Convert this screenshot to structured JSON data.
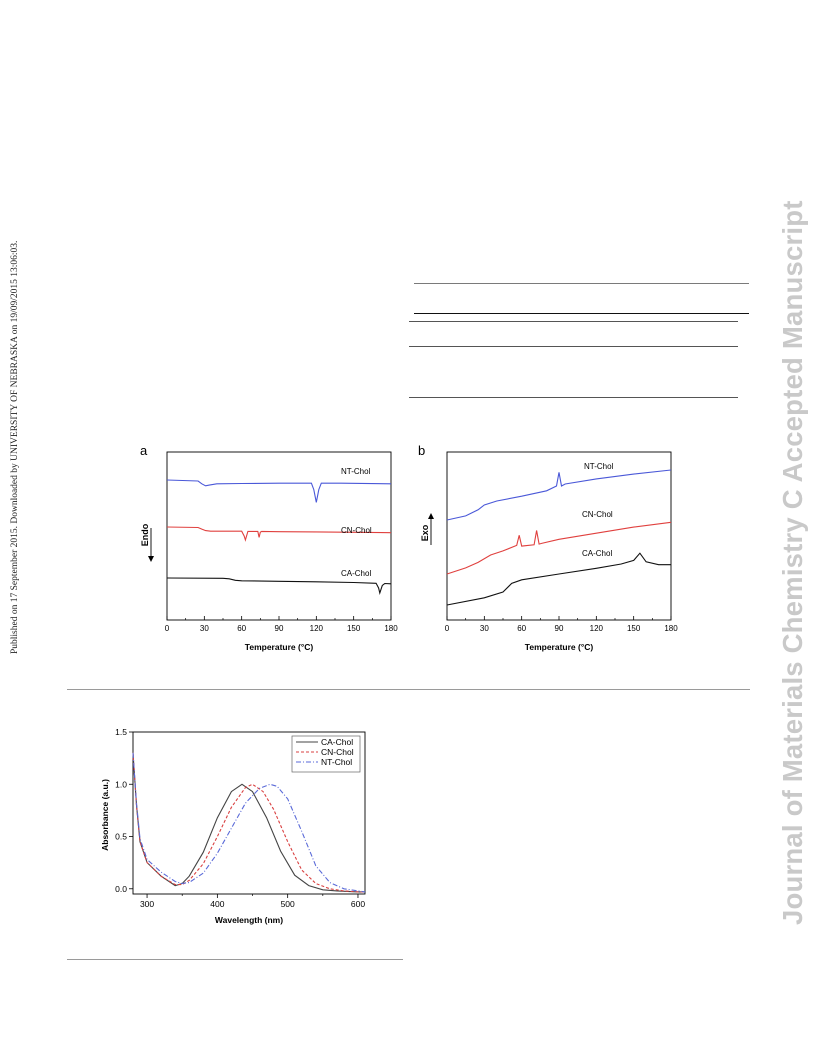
{
  "side_left_text": "Published on 17 September 2015. Downloaded by UNIVERSITY OF NEBRASKA on 19/09/2015 13:06:03.",
  "side_right_text": "Journal of Materials Chemistry C Accepted Manuscript",
  "chart_data": [
    {
      "type": "line",
      "panel_label": "a",
      "xlabel": "Temperature (°C)",
      "ylabel": "Endo",
      "xlim": [
        0,
        180
      ],
      "xticks": [
        "0",
        "30",
        "60",
        "90",
        "120",
        "150",
        "180"
      ],
      "series": [
        {
          "name": "NT-Chol",
          "color": "#4a58d8",
          "x": [
            0,
            25,
            28,
            31,
            34,
            40,
            60,
            90,
            116,
            118,
            120,
            122,
            124,
            140,
            180
          ],
          "y": [
            0,
            -0.3,
            -1.2,
            -1.8,
            -1.6,
            -1.2,
            -1.1,
            -1.0,
            -1.0,
            -3,
            -7,
            -3,
            -1.0,
            -1.0,
            -1.2
          ]
        },
        {
          "name": "CN-Chol",
          "color": "#e0403e",
          "x": [
            0,
            25,
            28,
            31,
            35,
            60,
            62,
            63,
            65,
            73,
            74,
            75,
            76,
            90,
            120,
            180
          ],
          "y": [
            0,
            -0.2,
            -0.8,
            -1.4,
            -1.6,
            -1.6,
            -3.5,
            -5,
            -1.7,
            -1.7,
            -4,
            -2,
            -1.7,
            -1.8,
            -1.9,
            -2.2
          ]
        },
        {
          "name": "CA-Chol",
          "color": "#111111",
          "x": [
            0,
            45,
            50,
            55,
            60,
            90,
            120,
            150,
            168,
            170,
            171,
            173,
            175,
            180
          ],
          "y": [
            0,
            -0.1,
            -0.3,
            -0.9,
            -1.1,
            -1.3,
            -1.5,
            -1.8,
            -2.1,
            -4,
            -6,
            -3,
            -2.2,
            -2.3
          ]
        }
      ]
    },
    {
      "type": "line",
      "panel_label": "b",
      "xlabel": "Temperature (°C)",
      "ylabel": "Exo",
      "xlim": [
        0,
        180
      ],
      "xticks": [
        "0",
        "30",
        "60",
        "90",
        "120",
        "150",
        "180"
      ],
      "series": [
        {
          "name": "NT-Chol",
          "color": "#4a58d8",
          "x": [
            0,
            15,
            25,
            30,
            40,
            60,
            80,
            88,
            90,
            92,
            95,
            120,
            150,
            180
          ],
          "y": [
            0,
            1.2,
            3.0,
            4.4,
            5.6,
            7.0,
            8.6,
            10,
            14,
            10,
            10.6,
            12.1,
            13.5,
            14.7
          ]
        },
        {
          "name": "CN-Chol",
          "color": "#e0403e",
          "x": [
            0,
            15,
            25,
            35,
            45,
            56,
            58,
            60,
            70,
            72,
            74,
            76,
            90,
            120,
            150,
            180
          ],
          "y": [
            0,
            1.8,
            3.4,
            5.6,
            6.8,
            8.4,
            11.4,
            8.2,
            8.6,
            12.8,
            8.8,
            9.0,
            10.2,
            12.0,
            13.8,
            15.2
          ]
        },
        {
          "name": "CA-Chol",
          "color": "#111111",
          "x": [
            0,
            30,
            45,
            52,
            60,
            90,
            120,
            140,
            150,
            155,
            160,
            170,
            180
          ],
          "y": [
            0,
            2.0,
            3.6,
            6.0,
            7.0,
            8.6,
            10.2,
            11.4,
            12.4,
            14.4,
            12.0,
            11.2,
            11.2
          ]
        }
      ]
    },
    {
      "type": "line",
      "xlabel": "Wavelength (nm)",
      "ylabel": "Absorbance (a.u.)",
      "xlim": [
        280,
        610
      ],
      "ylim": [
        -0.05,
        1.5
      ],
      "xticks": [
        "300",
        "400",
        "500",
        "600"
      ],
      "yticks": [
        "0.0",
        "0.5",
        "1.0",
        "1.5"
      ],
      "legend_position": "top-right",
      "series": [
        {
          "name": "CA-Chol",
          "color": "#444444",
          "style": "solid",
          "x": [
            280,
            285,
            290,
            300,
            320,
            340,
            350,
            360,
            380,
            400,
            420,
            435,
            450,
            470,
            490,
            510,
            530,
            550,
            570,
            600,
            610
          ],
          "y": [
            1.3,
            0.8,
            0.45,
            0.25,
            0.12,
            0.03,
            0.05,
            0.12,
            0.35,
            0.68,
            0.93,
            1.0,
            0.93,
            0.68,
            0.36,
            0.13,
            0.03,
            -0.01,
            -0.02,
            -0.03,
            -0.03
          ]
        },
        {
          "name": "CN-Chol",
          "color": "#d94040",
          "style": "dashed",
          "x": [
            280,
            285,
            290,
            300,
            320,
            340,
            350,
            360,
            380,
            400,
            420,
            440,
            450,
            465,
            480,
            500,
            520,
            540,
            560,
            580,
            600,
            610
          ],
          "y": [
            1.3,
            0.8,
            0.45,
            0.25,
            0.12,
            0.04,
            0.04,
            0.08,
            0.24,
            0.5,
            0.78,
            0.97,
            1.0,
            0.93,
            0.76,
            0.45,
            0.18,
            0.05,
            0.0,
            -0.02,
            -0.03,
            -0.03
          ]
        },
        {
          "name": "NT-Chol",
          "color": "#5a6ad8",
          "style": "dashdot",
          "x": [
            280,
            285,
            290,
            300,
            320,
            340,
            350,
            360,
            380,
            400,
            420,
            440,
            460,
            475,
            485,
            500,
            520,
            540,
            560,
            580,
            600,
            610
          ],
          "y": [
            1.3,
            0.82,
            0.48,
            0.28,
            0.16,
            0.07,
            0.05,
            0.06,
            0.15,
            0.34,
            0.58,
            0.82,
            0.96,
            1.0,
            0.98,
            0.86,
            0.55,
            0.22,
            0.06,
            0.0,
            -0.02,
            -0.03
          ]
        }
      ]
    }
  ]
}
